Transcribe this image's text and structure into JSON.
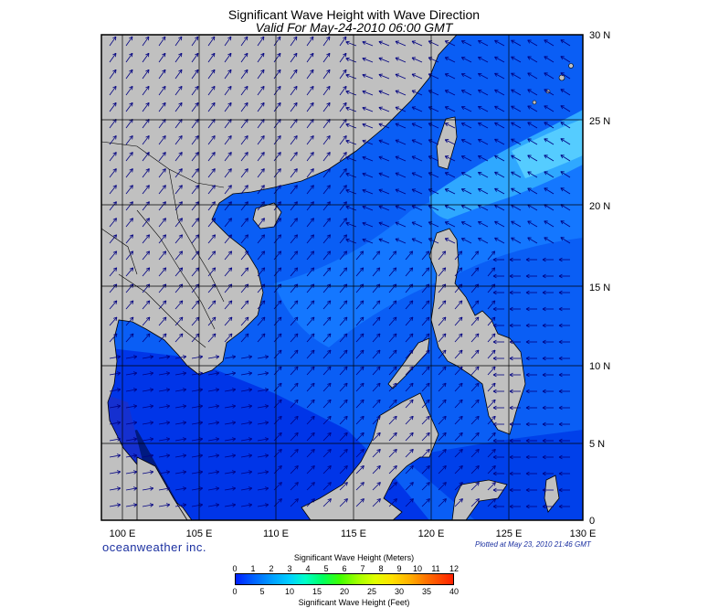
{
  "title": "Significant Wave Height with Wave Direction",
  "subtitle": "Valid For May-24-2010 06:00 GMT",
  "lon_labels": [
    "100 E",
    "105 E",
    "110 E",
    "115 E",
    "120 E",
    "125 E",
    "130 E"
  ],
  "lat_labels": [
    "30 N",
    "25 N",
    "20 N",
    "15 N",
    "10 N",
    "5 N",
    "0"
  ],
  "brand": "oceanweather inc.",
  "plotted_note": "Plotted at May 23, 2010 21:46 GMT",
  "colorbar": {
    "title_meters": "Significant Wave Height (Meters)",
    "title_feet": "Significant Wave Height (Feet)",
    "meter_ticks": [
      "0",
      "1",
      "2",
      "3",
      "4",
      "5",
      "6",
      "7",
      "8",
      "9",
      "10",
      "11",
      "12"
    ],
    "feet_ticks": [
      "0",
      "5",
      "10",
      "15",
      "20",
      "25",
      "30",
      "35",
      "40"
    ]
  },
  "colors": {
    "land": "#c0c0c0",
    "sea_low": "#0030f0",
    "sea_mid": "#0a6cff",
    "sea_high": "#3ab8ff",
    "arrow": "#000080",
    "grid": "#000000"
  }
}
